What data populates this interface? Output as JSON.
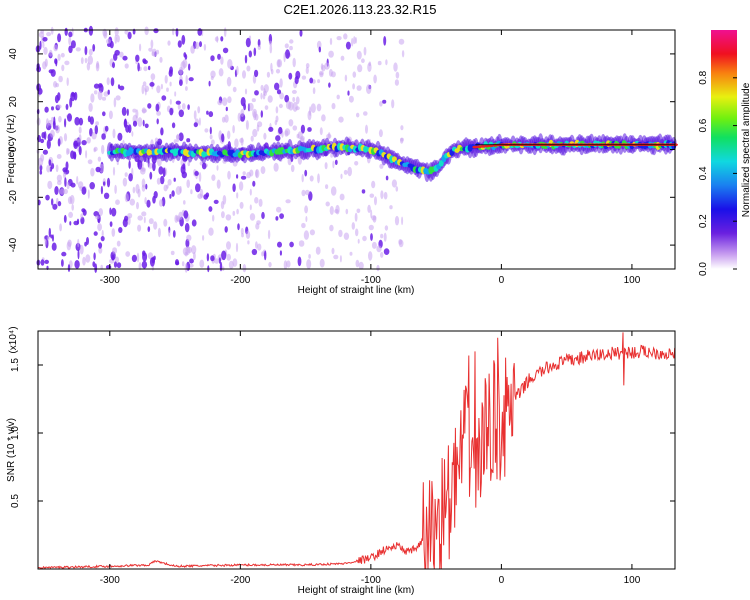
{
  "figure": {
    "title": "C2E1.2026.113.23.32.R15"
  },
  "chart_data": [
    {
      "type": "heatmap",
      "title": "C2E1.2026.113.23.32.R15",
      "xlabel": "Height of straight line (km)",
      "ylabel": "Frequency (Hz)",
      "xlim": [
        -355,
        133
      ],
      "ylim": [
        -50,
        50
      ],
      "xticks": [
        -300,
        -200,
        -100,
        0,
        100
      ],
      "yticks": [
        -40,
        -20,
        0,
        20,
        40
      ],
      "xtick_labels": [
        "-300",
        "-200",
        "-100",
        "0",
        "100"
      ],
      "ytick_labels": [
        "-40",
        "-20",
        "0",
        "20",
        "40"
      ],
      "colorbar": {
        "label": "Normalized spectral amplitude",
        "range": [
          0,
          1
        ],
        "ticks": [
          0.0,
          0.2,
          0.4,
          0.6,
          0.8
        ],
        "tick_labels": [
          "0.0",
          "0.2",
          "0.4",
          "0.6",
          "0.8"
        ],
        "colormap": "rainbow-white-to-magenta"
      },
      "ridge": [
        {
          "x": -300,
          "y": -1
        },
        {
          "x": -250,
          "y": -1
        },
        {
          "x": -200,
          "y": -2
        },
        {
          "x": -150,
          "y": 0
        },
        {
          "x": -120,
          "y": 1
        },
        {
          "x": -100,
          "y": 0
        },
        {
          "x": -90,
          "y": -2
        },
        {
          "x": -80,
          "y": -5
        },
        {
          "x": -65,
          "y": -8
        },
        {
          "x": -55,
          "y": -9
        },
        {
          "x": -48,
          "y": -7
        },
        {
          "x": -42,
          "y": -3
        },
        {
          "x": -35,
          "y": 0
        },
        {
          "x": -20,
          "y": 1
        },
        {
          "x": 0,
          "y": 2
        },
        {
          "x": 50,
          "y": 2
        },
        {
          "x": 133,
          "y": 2
        }
      ],
      "noise_region_x": [
        -355,
        -75
      ]
    },
    {
      "type": "line",
      "xlabel": "Height of straight line (km)",
      "ylabel": "SNR (10 * v/v)",
      "y_multiplier": "(x10⁴)",
      "xlim": [
        -355,
        133
      ],
      "ylim": [
        0,
        1.75
      ],
      "xticks": [
        -300,
        -200,
        -100,
        0,
        100
      ],
      "yticks": [
        0.5,
        1.0,
        1.5
      ],
      "xtick_labels": [
        "-300",
        "-200",
        "-100",
        "0",
        "100"
      ],
      "ytick_labels": [
        "0.5",
        "1.0",
        "1.5"
      ],
      "color": "#e83030",
      "series": [
        {
          "x": [
            -355,
            -300,
            -270,
            -265,
            -250,
            -200,
            -150,
            -120,
            -100,
            -90,
            -80,
            -70,
            -60,
            -50,
            -45,
            -40,
            -35,
            -30,
            -25,
            -20,
            -15,
            -10,
            -5,
            0,
            5,
            10,
            15,
            20,
            30,
            40,
            50,
            60,
            70,
            80,
            90,
            95,
            100,
            110,
            120,
            133
          ],
          "y": [
            0.01,
            0.02,
            0.03,
            0.06,
            0.02,
            0.03,
            0.03,
            0.04,
            0.08,
            0.14,
            0.17,
            0.12,
            0.2,
            0.32,
            0.45,
            0.5,
            0.65,
            0.85,
            0.95,
            0.8,
            0.9,
            1.05,
            1.1,
            1.05,
            1.15,
            1.25,
            1.3,
            1.38,
            1.45,
            1.5,
            1.53,
            1.55,
            1.57,
            1.58,
            1.59,
            1.6,
            1.59,
            1.6,
            1.59,
            1.58
          ],
          "peaks": [
            {
              "x": -25,
              "y": 1.57
            },
            {
              "x": -20,
              "y": 1.6
            },
            {
              "x": -3,
              "y": 1.7
            },
            {
              "x": 93,
              "y": 1.74
            },
            {
              "x": 94,
              "y": 1.35
            }
          ]
        }
      ]
    }
  ],
  "colors": {
    "axis": "#000000",
    "line": "#e83030",
    "ridge_core": "#e8202a",
    "noise": "#7b2be0"
  }
}
